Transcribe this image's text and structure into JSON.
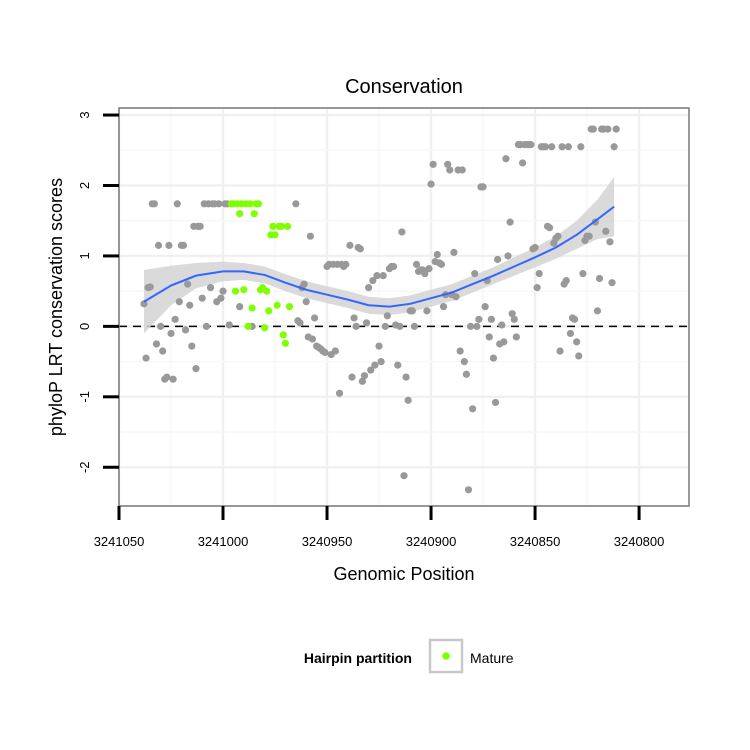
{
  "chart_data": {
    "type": "scatter",
    "title": "Conservation",
    "xlabel": "Genomic Position",
    "ylabel": "phyloP LRT conservation scores",
    "x_reversed": true,
    "xlim": [
      3241050,
      3240776
    ],
    "ylim": [
      -2.55,
      3.1
    ],
    "x_ticks": [
      3241050,
      3241000,
      3240950,
      3240900,
      3240850,
      3240800
    ],
    "x_tick_labels": [
      "3241050",
      "3241000",
      "3240950",
      "3240900",
      "3240850",
      "3240800"
    ],
    "y_ticks": [
      -2,
      -1,
      0,
      1,
      2,
      3
    ],
    "y_tick_labels": [
      "-2",
      "-1",
      "0",
      "1",
      "2",
      "3"
    ],
    "grid": true,
    "reference_line": {
      "y": 0,
      "style": "dashed"
    },
    "legend": {
      "title": "Hairpin partition",
      "position": "bottom",
      "entries": [
        {
          "label": "Mature",
          "color": "#7fff00"
        }
      ]
    },
    "colors": {
      "other": "#999999",
      "mature": "#7fff00",
      "smooth": "#3366ff",
      "band": "#d3d3d3"
    },
    "series": [
      {
        "name": "",
        "color": "#999999",
        "points": [
          [
            3241038,
            0.32
          ],
          [
            3241037,
            -0.45
          ],
          [
            3241036,
            0.55
          ],
          [
            3241035,
            0.56
          ],
          [
            3241034,
            1.74
          ],
          [
            3241033,
            1.74
          ],
          [
            3241032,
            -0.25
          ],
          [
            3241031,
            1.15
          ],
          [
            3241030,
            0.0
          ],
          [
            3241029,
            -0.35
          ],
          [
            3241028,
            -0.75
          ],
          [
            3241027,
            -0.72
          ],
          [
            3241026,
            1.15
          ],
          [
            3241025,
            -0.1
          ],
          [
            3241024,
            -0.75
          ],
          [
            3241023,
            0.1
          ],
          [
            3241022,
            1.74
          ],
          [
            3241021,
            0.35
          ],
          [
            3241020,
            1.15
          ],
          [
            3241019,
            1.15
          ],
          [
            3241018,
            -0.05
          ],
          [
            3241017,
            0.6
          ],
          [
            3241016,
            0.3
          ],
          [
            3241015,
            -0.28
          ],
          [
            3241014,
            1.42
          ],
          [
            3241013,
            -0.6
          ],
          [
            3241012,
            1.42
          ],
          [
            3241011,
            1.42
          ],
          [
            3241010,
            0.4
          ],
          [
            3241009,
            1.74
          ],
          [
            3241008,
            0.0
          ],
          [
            3241007,
            1.74
          ],
          [
            3241006,
            0.55
          ],
          [
            3241005,
            1.74
          ],
          [
            3241004,
            1.74
          ],
          [
            3241003,
            0.35
          ],
          [
            3241002,
            1.74
          ],
          [
            3241001,
            0.4
          ],
          [
            3241000,
            0.5
          ],
          [
            3240999,
            1.74
          ],
          [
            3240998,
            1.74
          ],
          [
            3240997,
            0.02
          ],
          [
            3240992,
            0.28
          ],
          [
            3240986,
            0.0
          ],
          [
            3240965,
            1.74
          ],
          [
            3240964,
            0.08
          ],
          [
            3240963,
            0.05
          ],
          [
            3240962,
            0.55
          ],
          [
            3240961,
            0.6
          ],
          [
            3240960,
            0.35
          ],
          [
            3240959,
            -0.15
          ],
          [
            3240958,
            1.28
          ],
          [
            3240957,
            -0.18
          ],
          [
            3240956,
            0.12
          ],
          [
            3240955,
            -0.28
          ],
          [
            3240954,
            -0.3
          ],
          [
            3240953,
            -0.32
          ],
          [
            3240952,
            -0.35
          ],
          [
            3240951,
            -0.37
          ],
          [
            3240950,
            0.85
          ],
          [
            3240949,
            0.88
          ],
          [
            3240948,
            -0.4
          ],
          [
            3240947,
            0.88
          ],
          [
            3240946,
            -0.35
          ],
          [
            3240945,
            0.88
          ],
          [
            3240944,
            -0.95
          ],
          [
            3240943,
            0.88
          ],
          [
            3240942,
            0.85
          ],
          [
            3240941,
            0.88
          ],
          [
            3240939,
            1.15
          ],
          [
            3240938,
            -0.72
          ],
          [
            3240937,
            0.12
          ],
          [
            3240936,
            0.0
          ],
          [
            3240935,
            1.12
          ],
          [
            3240934,
            1.1
          ],
          [
            3240933,
            -0.78
          ],
          [
            3240932,
            -0.7
          ],
          [
            3240931,
            0.05
          ],
          [
            3240930,
            0.55
          ],
          [
            3240929,
            -0.62
          ],
          [
            3240928,
            0.65
          ],
          [
            3240927,
            -0.55
          ],
          [
            3240926,
            0.72
          ],
          [
            3240925,
            -0.28
          ],
          [
            3240924,
            -0.5
          ],
          [
            3240923,
            0.72
          ],
          [
            3240922,
            0.0
          ],
          [
            3240921,
            0.15
          ],
          [
            3240920,
            0.82
          ],
          [
            3240919,
            0.85
          ],
          [
            3240918,
            0.85
          ],
          [
            3240917,
            0.02
          ],
          [
            3240916,
            -0.55
          ],
          [
            3240915,
            0.0
          ],
          [
            3240914,
            1.34
          ],
          [
            3240913,
            -2.12
          ],
          [
            3240912,
            -0.72
          ],
          [
            3240911,
            -1.05
          ],
          [
            3240910,
            0.22
          ],
          [
            3240909,
            0.22
          ],
          [
            3240908,
            0.0
          ],
          [
            3240907,
            0.88
          ],
          [
            3240906,
            0.78
          ],
          [
            3240905,
            0.8
          ],
          [
            3240904,
            0.8
          ],
          [
            3240903,
            0.75
          ],
          [
            3240902,
            0.22
          ],
          [
            3240901,
            0.82
          ],
          [
            3240900,
            2.02
          ],
          [
            3240899,
            2.3
          ],
          [
            3240898,
            0.92
          ],
          [
            3240897,
            1.02
          ],
          [
            3240896,
            0.9
          ],
          [
            3240895,
            0.88
          ],
          [
            3240894,
            0.28
          ],
          [
            3240893,
            0.45
          ],
          [
            3240892,
            2.3
          ],
          [
            3240891,
            2.22
          ],
          [
            3240890,
            0.45
          ],
          [
            3240889,
            1.05
          ],
          [
            3240888,
            0.42
          ],
          [
            3240887,
            2.22
          ],
          [
            3240886,
            -0.35
          ],
          [
            3240885,
            2.22
          ],
          [
            3240884,
            -0.5
          ],
          [
            3240883,
            -0.68
          ],
          [
            3240882,
            -2.32
          ],
          [
            3240881,
            0.0
          ],
          [
            3240880,
            -1.17
          ],
          [
            3240879,
            0.75
          ],
          [
            3240878,
            0.0
          ],
          [
            3240877,
            0.1
          ],
          [
            3240876,
            1.98
          ],
          [
            3240875,
            1.98
          ],
          [
            3240874,
            0.28
          ],
          [
            3240873,
            0.65
          ],
          [
            3240872,
            -0.15
          ],
          [
            3240871,
            0.1
          ],
          [
            3240870,
            -0.45
          ],
          [
            3240869,
            -1.08
          ],
          [
            3240868,
            0.95
          ],
          [
            3240867,
            -0.25
          ],
          [
            3240866,
            0.02
          ],
          [
            3240865,
            -0.22
          ],
          [
            3240864,
            2.38
          ],
          [
            3240863,
            1.0
          ],
          [
            3240862,
            1.48
          ],
          [
            3240861,
            0.18
          ],
          [
            3240860,
            0.1
          ],
          [
            3240859,
            -0.15
          ],
          [
            3240858,
            2.58
          ],
          [
            3240857,
            2.58
          ],
          [
            3240856,
            2.32
          ],
          [
            3240855,
            2.58
          ],
          [
            3240854,
            2.58
          ],
          [
            3240853,
            2.58
          ],
          [
            3240852,
            2.58
          ],
          [
            3240851,
            1.1
          ],
          [
            3240850,
            1.12
          ],
          [
            3240849,
            0.55
          ],
          [
            3240848,
            0.75
          ],
          [
            3240847,
            2.55
          ],
          [
            3240846,
            2.55
          ],
          [
            3240845,
            2.55
          ],
          [
            3240844,
            1.42
          ],
          [
            3240843,
            1.4
          ],
          [
            3240842,
            2.55
          ],
          [
            3240841,
            1.18
          ],
          [
            3240840,
            1.25
          ],
          [
            3240839,
            1.28
          ],
          [
            3240838,
            -0.35
          ],
          [
            3240837,
            2.55
          ],
          [
            3240836,
            0.6
          ],
          [
            3240835,
            0.65
          ],
          [
            3240834,
            2.55
          ],
          [
            3240833,
            -0.1
          ],
          [
            3240832,
            0.12
          ],
          [
            3240831,
            0.1
          ],
          [
            3240830,
            -0.22
          ],
          [
            3240829,
            -0.42
          ],
          [
            3240828,
            2.55
          ],
          [
            3240827,
            0.75
          ],
          [
            3240826,
            1.22
          ],
          [
            3240825,
            1.28
          ],
          [
            3240824,
            1.28
          ],
          [
            3240823,
            2.8
          ],
          [
            3240822,
            2.8
          ],
          [
            3240821,
            1.48
          ],
          [
            3240820,
            0.22
          ],
          [
            3240819,
            0.68
          ],
          [
            3240818,
            2.8
          ],
          [
            3240817,
            2.8
          ],
          [
            3240816,
            1.35
          ],
          [
            3240815,
            2.8
          ],
          [
            3240814,
            1.2
          ],
          [
            3240813,
            0.62
          ],
          [
            3240812,
            2.55
          ],
          [
            3240811,
            2.8
          ]
        ]
      },
      {
        "name": "Mature",
        "color": "#7fff00",
        "points": [
          [
            3240996,
            1.74
          ],
          [
            3240995,
            1.74
          ],
          [
            3240994,
            0.5
          ],
          [
            3240993,
            1.74
          ],
          [
            3240992,
            1.6
          ],
          [
            3240991,
            1.74
          ],
          [
            3240990,
            0.52
          ],
          [
            3240989,
            1.74
          ],
          [
            3240988,
            0.0
          ],
          [
            3240987,
            1.74
          ],
          [
            3240986,
            0.26
          ],
          [
            3240985,
            1.6
          ],
          [
            3240984,
            1.74
          ],
          [
            3240983,
            1.74
          ],
          [
            3240982,
            0.52
          ],
          [
            3240981,
            0.55
          ],
          [
            3240980,
            -0.02
          ],
          [
            3240979,
            0.5
          ],
          [
            3240978,
            0.22
          ],
          [
            3240977,
            1.3
          ],
          [
            3240976,
            1.42
          ],
          [
            3240975,
            1.3
          ],
          [
            3240974,
            0.3
          ],
          [
            3240973,
            1.42
          ],
          [
            3240972,
            1.42
          ],
          [
            3240971,
            -0.12
          ],
          [
            3240970,
            -0.24
          ],
          [
            3240969,
            1.42
          ],
          [
            3240968,
            0.28
          ]
        ]
      }
    ],
    "smooth": {
      "x": [
        3241038,
        3241025,
        3241013,
        3241000,
        3240990,
        3240980,
        3240970,
        3240960,
        3240950,
        3240940,
        3240930,
        3240920,
        3240910,
        3240900,
        3240890,
        3240880,
        3240870,
        3240860,
        3240850,
        3240840,
        3240830,
        3240820,
        3240812
      ],
      "y": [
        0.35,
        0.58,
        0.72,
        0.78,
        0.78,
        0.73,
        0.62,
        0.52,
        0.45,
        0.38,
        0.3,
        0.28,
        0.32,
        0.4,
        0.48,
        0.6,
        0.72,
        0.85,
        0.98,
        1.12,
        1.3,
        1.52,
        1.7
      ],
      "se": [
        0.45,
        0.28,
        0.18,
        0.14,
        0.12,
        0.12,
        0.12,
        0.12,
        0.12,
        0.12,
        0.12,
        0.12,
        0.12,
        0.12,
        0.12,
        0.12,
        0.12,
        0.13,
        0.14,
        0.16,
        0.2,
        0.28,
        0.42
      ]
    }
  }
}
